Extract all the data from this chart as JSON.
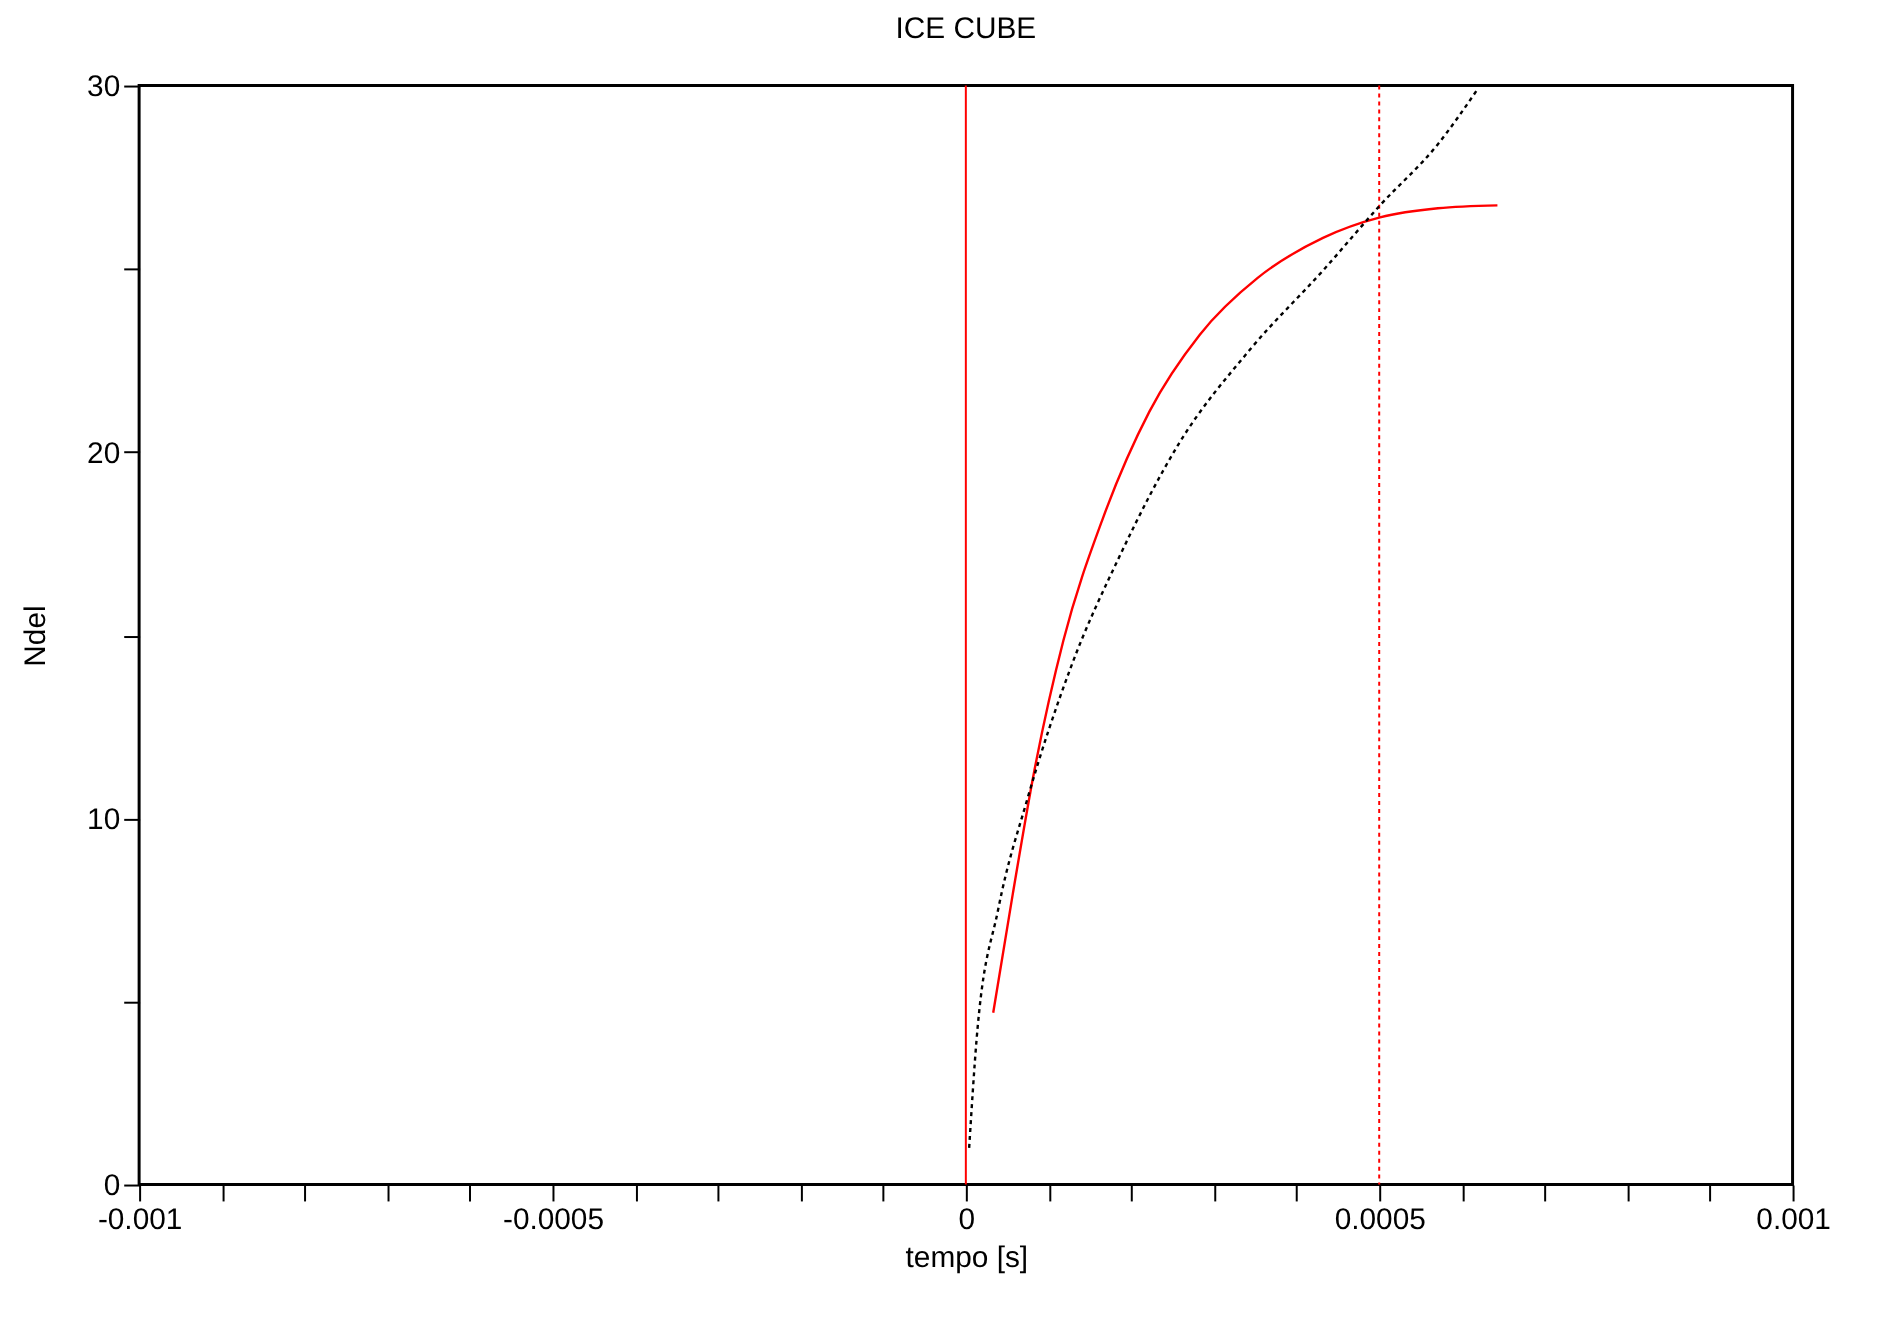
{
  "chart_data": {
    "type": "line",
    "title": "ICE CUBE",
    "xlabel": "tempo [s]",
    "ylabel": "Ndel",
    "xlim": [
      -0.001,
      0.001
    ],
    "ylim": [
      0,
      30
    ],
    "xticks": [
      -0.001,
      {
        "value": -0.0009,
        "label": null
      },
      {
        "value": -0.0008,
        "label": null
      },
      {
        "value": -0.0007,
        "label": null
      },
      {
        "value": -0.0006,
        "label": null
      },
      -0.0005,
      {
        "value": -0.0004,
        "label": null
      },
      {
        "value": -0.0003,
        "label": null
      },
      {
        "value": -0.0002,
        "label": null
      },
      {
        "value": -0.0001,
        "label": null
      },
      0,
      {
        "value": 0.0001,
        "label": null
      },
      {
        "value": 0.0002,
        "label": null
      },
      {
        "value": 0.0003,
        "label": null
      },
      {
        "value": 0.0004,
        "label": null
      },
      0.0005,
      {
        "value": 0.0006,
        "label": null
      },
      {
        "value": 0.0007,
        "label": null
      },
      {
        "value": 0.0008,
        "label": null
      },
      {
        "value": 0.0009,
        "label": null
      },
      0.001
    ],
    "yticks": [
      0,
      {
        "value": 5,
        "label": null
      },
      10,
      {
        "value": 15,
        "label": null
      },
      20,
      {
        "value": 25,
        "label": null
      },
      30
    ],
    "grid": false,
    "series": [
      {
        "color": "#ff0000",
        "line_style": "solid",
        "x": [
          3.31e-05,
          5.67e-05,
          8.28e-05,
          0.000118,
          0.000166,
          0.000222,
          0.000283,
          0.000353,
          0.000432,
          0.000501,
          0.000571,
          0.000643
        ],
        "values": [
          4.69,
          7.92,
          11.29,
          14.85,
          18.2,
          21.1,
          23.2,
          24.75,
          25.84,
          26.4,
          26.65,
          26.73
        ]
      },
      {
        "color": "#000000",
        "line_style": "dotted",
        "x": [
          4e-06,
          1.3e-05,
          3.92e-05,
          7.41e-05,
          0.000126,
          0.000187,
          0.000257,
          0.000344,
          0.000432,
          0.000501,
          0.000571,
          0.000619
        ],
        "values": [
          1.0,
          3.96,
          7.52,
          10.5,
          14.06,
          17.2,
          20.2,
          22.8,
          24.95,
          26.73,
          28.4,
          29.9
        ]
      }
    ],
    "ref_lines": [
      {
        "axis": "x",
        "value": 0,
        "color": "#ff0000",
        "line_style": "solid"
      },
      {
        "axis": "x",
        "value": 0.0005,
        "color": "#ff0000",
        "line_style": "dotted"
      }
    ]
  }
}
